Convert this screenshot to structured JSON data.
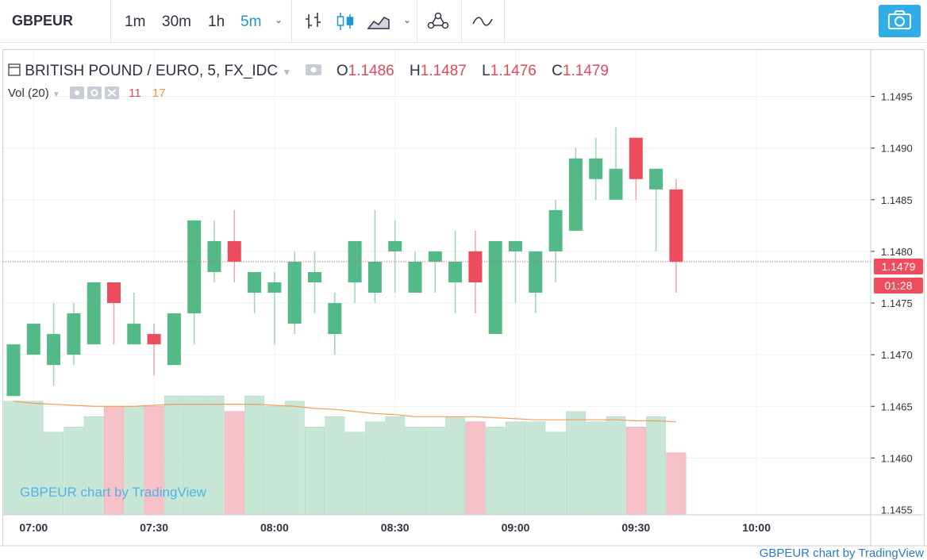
{
  "toolbar": {
    "symbol": "GBPEUR",
    "intervals": [
      "1m",
      "30m",
      "1h",
      "5m"
    ],
    "active_interval": "5m"
  },
  "legend": {
    "title": "BRITISH POUND / EURO, 5, FX_IDC",
    "open_label": "O",
    "open": "1.1486",
    "high_label": "H",
    "high": "1.1487",
    "low_label": "L",
    "low": "1.1476",
    "close_label": "C",
    "close": "1.1479",
    "vol_label": "Vol (20)",
    "vol_value": "11",
    "vol_ma": "17"
  },
  "watermark": "GBPEUR chart by TradingView",
  "footer_credit": "GBPEUR chart by TradingView",
  "price_tag": {
    "last": "1.1479",
    "countdown": "01:28"
  },
  "colors": {
    "up": "#53b987",
    "down": "#eb4d5c",
    "vol_up": "#c8e6d6",
    "vol_down": "#f7c2c7",
    "ma_line": "#f39c5a",
    "accent": "#1e96d1"
  },
  "chart_data": {
    "type": "candlestick",
    "interval_minutes": 5,
    "start_time": "06:55",
    "ylim": [
      1.14545,
      1.14995
    ],
    "yticks": [
      "1.1460",
      "1.1465",
      "1.1470",
      "1.1475",
      "1.1480",
      "1.1485",
      "1.1490",
      "1.1495"
    ],
    "ytick_cut": "1.1455",
    "xticks": [
      "07:00",
      "07:30",
      "08:00",
      "08:30",
      "09:00",
      "09:30",
      "10:00"
    ],
    "candles": [
      {
        "o": 1.1466,
        "h": 1.1471,
        "l": 1.1466,
        "c": 1.1471,
        "v": 1.14655
      },
      {
        "o": 1.147,
        "h": 1.1473,
        "l": 1.147,
        "c": 1.1473,
        "v": 1.14655
      },
      {
        "o": 1.1469,
        "h": 1.1475,
        "l": 1.1467,
        "c": 1.1472,
        "v": 1.14625
      },
      {
        "o": 1.147,
        "h": 1.1475,
        "l": 1.1469,
        "c": 1.1474,
        "v": 1.1463
      },
      {
        "o": 1.1471,
        "h": 1.1477,
        "l": 1.1471,
        "c": 1.1477,
        "v": 1.1464
      },
      {
        "o": 1.1477,
        "h": 1.1477,
        "l": 1.1471,
        "c": 1.1475,
        "v": 1.1465
      },
      {
        "o": 1.1471,
        "h": 1.1476,
        "l": 1.1471,
        "c": 1.1473,
        "v": 1.1465
      },
      {
        "o": 1.1472,
        "h": 1.1473,
        "l": 1.1468,
        "c": 1.1471,
        "v": 1.1465
      },
      {
        "o": 1.1469,
        "h": 1.1474,
        "l": 1.1469,
        "c": 1.1474,
        "v": 1.1466
      },
      {
        "o": 1.1474,
        "h": 1.1483,
        "l": 1.1471,
        "c": 1.1483,
        "v": 1.1466
      },
      {
        "o": 1.1478,
        "h": 1.1483,
        "l": 1.1477,
        "c": 1.1481,
        "v": 1.1466
      },
      {
        "o": 1.1481,
        "h": 1.1484,
        "l": 1.1477,
        "c": 1.1479,
        "v": 1.14645
      },
      {
        "o": 1.1476,
        "h": 1.1478,
        "l": 1.1474,
        "c": 1.1478,
        "v": 1.1466
      },
      {
        "o": 1.1476,
        "h": 1.1478,
        "l": 1.1471,
        "c": 1.1477,
        "v": 1.1465
      },
      {
        "o": 1.1473,
        "h": 1.148,
        "l": 1.1472,
        "c": 1.1479,
        "v": 1.14655
      },
      {
        "o": 1.1477,
        "h": 1.148,
        "l": 1.1474,
        "c": 1.1478,
        "v": 1.1463
      },
      {
        "o": 1.1472,
        "h": 1.1476,
        "l": 1.147,
        "c": 1.1475,
        "v": 1.1464
      },
      {
        "o": 1.1477,
        "h": 1.1481,
        "l": 1.1475,
        "c": 1.1481,
        "v": 1.14625
      },
      {
        "o": 1.1476,
        "h": 1.1484,
        "l": 1.1475,
        "c": 1.1479,
        "v": 1.14635
      },
      {
        "o": 1.148,
        "h": 1.1483,
        "l": 1.1476,
        "c": 1.1481,
        "v": 1.1464
      },
      {
        "o": 1.1476,
        "h": 1.148,
        "l": 1.1476,
        "c": 1.1479,
        "v": 1.1463
      },
      {
        "o": 1.1479,
        "h": 1.148,
        "l": 1.1476,
        "c": 1.148,
        "v": 1.1463
      },
      {
        "o": 1.1477,
        "h": 1.1482,
        "l": 1.1474,
        "c": 1.1479,
        "v": 1.1464
      },
      {
        "o": 1.148,
        "h": 1.1482,
        "l": 1.1474,
        "c": 1.1477,
        "v": 1.14635
      },
      {
        "o": 1.1472,
        "h": 1.1481,
        "l": 1.1472,
        "c": 1.1481,
        "v": 1.1463
      },
      {
        "o": 1.148,
        "h": 1.1481,
        "l": 1.1475,
        "c": 1.1481,
        "v": 1.14635
      },
      {
        "o": 1.1476,
        "h": 1.148,
        "l": 1.1474,
        "c": 1.148,
        "v": 1.14635
      },
      {
        "o": 1.148,
        "h": 1.1485,
        "l": 1.1477,
        "c": 1.1484,
        "v": 1.14625
      },
      {
        "o": 1.1482,
        "h": 1.149,
        "l": 1.1482,
        "c": 1.1489,
        "v": 1.14645
      },
      {
        "o": 1.1487,
        "h": 1.1491,
        "l": 1.1485,
        "c": 1.1489,
        "v": 1.14635
      },
      {
        "o": 1.1485,
        "h": 1.1492,
        "l": 1.1485,
        "c": 1.1488,
        "v": 1.1464
      },
      {
        "o": 1.1491,
        "h": 1.1491,
        "l": 1.1485,
        "c": 1.1487,
        "v": 1.1463
      },
      {
        "o": 1.1486,
        "h": 1.1488,
        "l": 1.148,
        "c": 1.1488,
        "v": 1.1464
      },
      {
        "o": 1.1486,
        "h": 1.1487,
        "l": 1.1476,
        "c": 1.1479,
        "v": 1.14605
      }
    ],
    "volume_ma": [
      1.14655,
      1.14653,
      1.14652,
      1.14651,
      1.1465,
      1.1465,
      1.1465,
      1.14651,
      1.14652,
      1.14652,
      1.14652,
      1.14652,
      1.14652,
      1.14651,
      1.1465,
      1.14648,
      1.14647,
      1.14645,
      1.14643,
      1.14642,
      1.1464,
      1.1464,
      1.1464,
      1.1464,
      1.14639,
      1.14638,
      1.14637,
      1.14637,
      1.14637,
      1.14637,
      1.14637,
      1.14636,
      1.14636,
      1.14635
    ]
  }
}
